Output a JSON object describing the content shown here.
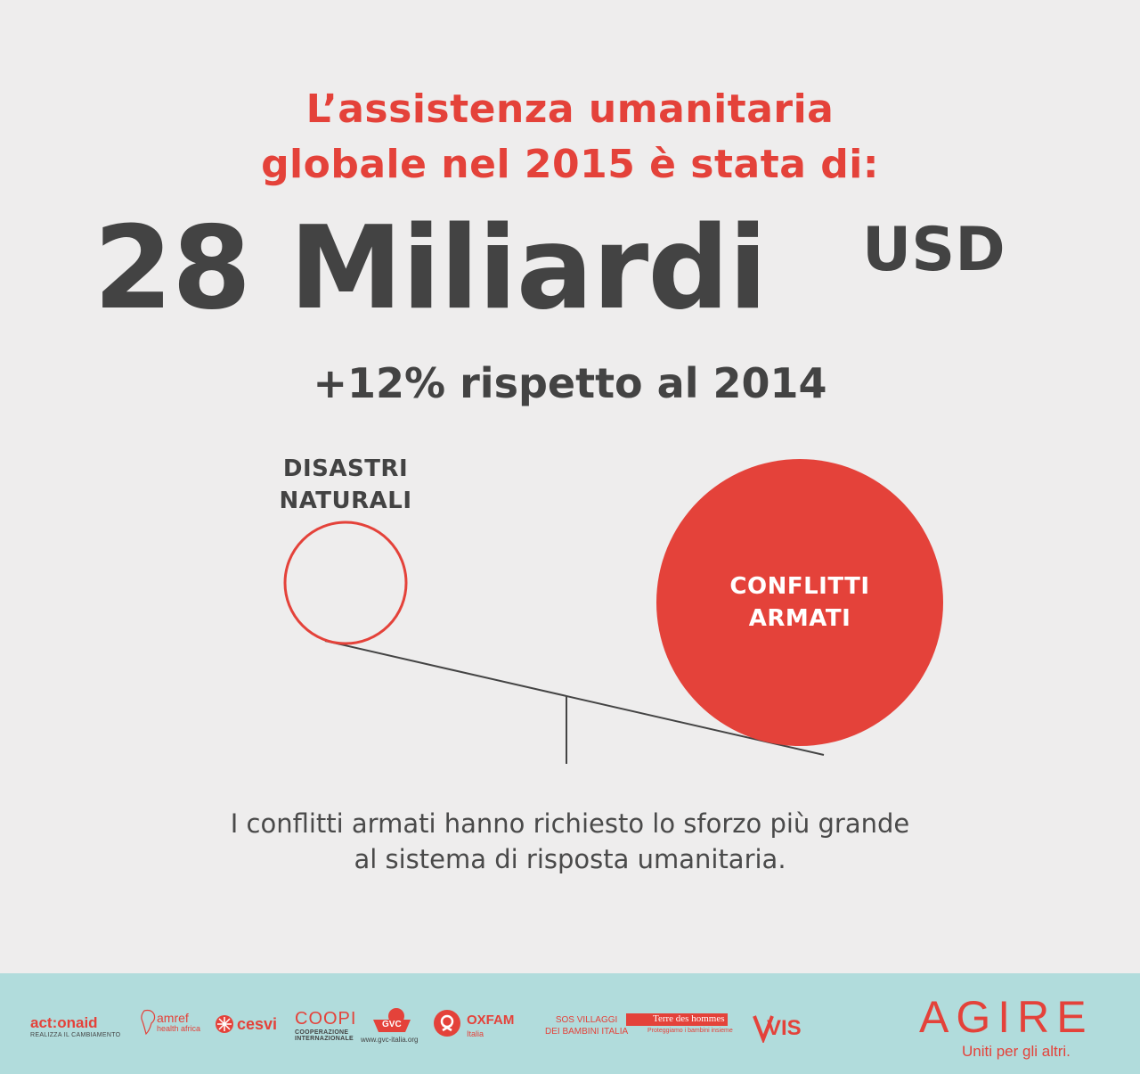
{
  "headline": {
    "line1": "L’assistenza umanitaria",
    "line2": "globale nel 2015 è stata di:"
  },
  "amount": {
    "value": "28 Miliardi",
    "currency": "USD"
  },
  "change": "+12% rispetto al 2014",
  "scale": {
    "left_label_line1": "DISASTRI",
    "left_label_line2": "NATURALI",
    "right_label_line1": "CONFLITTI",
    "right_label_line2": "ARMATI"
  },
  "caption": {
    "line1": "I conflitti armati hanno richiesto lo sforzo più grande",
    "line2": "al sistema di risposta umanitaria."
  },
  "footer": {
    "partners": {
      "actionaid": "act:onaid",
      "actionaid_sub": "REALIZZA IL CAMBIAMENTO",
      "amref": "amref",
      "amref_sub": "health africa",
      "cesvi": "cesvi",
      "coopi": "COOPI",
      "coopi_sub1": "COOPERAZIONE",
      "coopi_sub2": "INTERNAZIONALE",
      "gvc": "GVC",
      "gvc_sub": "www.gvc-italia.org",
      "oxfam": "OXFAM",
      "oxfam_sub": "Italia",
      "sos_line1": "SOS VILLAGGI",
      "sos_line2": "DEI BAMBINI ITALIA",
      "tdh": "Terre des hommes",
      "tdh_sub": "Proteggiamo i bambini insieme",
      "vis": "VIS"
    },
    "brand": "AGIRE",
    "tagline": "Uniti per gli altri."
  },
  "colors": {
    "accent": "#e4423a",
    "text_dark": "#434343",
    "background": "#eeeded",
    "footer_bg": "#b1dcdc"
  }
}
